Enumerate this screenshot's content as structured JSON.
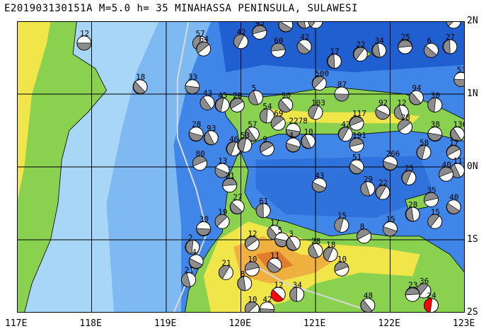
{
  "header": {
    "title": "E201903130151A M=5.0 h= 35 MINAHASSA PENINSULA, SULAWESI"
  },
  "map": {
    "lon_range": [
      117,
      123
    ],
    "lat_range": [
      -2,
      2
    ],
    "x_ticks": [
      "117E",
      "118E",
      "119E",
      "120E",
      "121E",
      "122E",
      "123E"
    ],
    "y_ticks": [
      "2N",
      "1N",
      "0N",
      "1S",
      "2S"
    ],
    "colors": {
      "deep_sea": "#1f5fd0",
      "mid_sea": "#3f86e8",
      "shallow_sea": "#7fb9f2",
      "shelf": "#a8d6f6",
      "lowland": "#8ad14f",
      "upland": "#f0e64a",
      "highland": "#f0b040",
      "peak": "#e07c2a",
      "grid": "#000000",
      "trench": "#d9d9d9",
      "event_highlight": "#ff0000"
    },
    "focal_mechanisms": [
      {
        "lon": 117.9,
        "lat": 1.7,
        "label": "12"
      },
      {
        "lon": 118.65,
        "lat": 1.1,
        "label": "18"
      },
      {
        "lon": 119.45,
        "lat": 1.7,
        "label": "57"
      },
      {
        "lon": 119.5,
        "lat": 1.62,
        "label": "64"
      },
      {
        "lon": 119.35,
        "lat": 1.1,
        "label": "33"
      },
      {
        "lon": 119.55,
        "lat": 0.88,
        "label": "43"
      },
      {
        "lon": 119.75,
        "lat": 0.85,
        "label": "45"
      },
      {
        "lon": 119.95,
        "lat": 0.85,
        "label": "20"
      },
      {
        "lon": 119.4,
        "lat": 0.45,
        "label": "28"
      },
      {
        "lon": 119.6,
        "lat": 0.4,
        "label": "93"
      },
      {
        "lon": 119.9,
        "lat": 0.25,
        "label": "46"
      },
      {
        "lon": 119.45,
        "lat": 0.05,
        "label": "80"
      },
      {
        "lon": 119.75,
        "lat": -0.05,
        "label": "13"
      },
      {
        "lon": 120.2,
        "lat": 0.95,
        "label": "5"
      },
      {
        "lon": 120.0,
        "lat": 1.72,
        "label": "42"
      },
      {
        "lon": 120.25,
        "lat": 1.85,
        "label": "43"
      },
      {
        "lon": 120.6,
        "lat": 1.95,
        "label": "33"
      },
      {
        "lon": 120.85,
        "lat": 2.0,
        "label": "59"
      },
      {
        "lon": 121.0,
        "lat": 2.0,
        "label": "35"
      },
      {
        "lon": 120.5,
        "lat": 1.6,
        "label": "60"
      },
      {
        "lon": 120.85,
        "lat": 1.65,
        "label": "42"
      },
      {
        "lon": 121.25,
        "lat": 1.45,
        "label": "17"
      },
      {
        "lon": 121.05,
        "lat": 1.15,
        "label": "500"
      },
      {
        "lon": 121.35,
        "lat": 1.0,
        "label": "87"
      },
      {
        "lon": 120.6,
        "lat": 0.85,
        "label": "90"
      },
      {
        "lon": 120.35,
        "lat": 0.7,
        "label": "54"
      },
      {
        "lon": 120.5,
        "lat": 0.6,
        "label": "69"
      },
      {
        "lon": 120.7,
        "lat": 0.5,
        "label": "2278"
      },
      {
        "lon": 120.15,
        "lat": 0.45,
        "label": "57"
      },
      {
        "lon": 120.05,
        "lat": 0.3,
        "label": "53"
      },
      {
        "lon": 120.35,
        "lat": 0.25,
        "label": "9"
      },
      {
        "lon": 120.7,
        "lat": 0.3,
        "label": "4"
      },
      {
        "lon": 120.9,
        "lat": 0.35,
        "label": "10"
      },
      {
        "lon": 121.0,
        "lat": 0.75,
        "label": "103"
      },
      {
        "lon": 121.55,
        "lat": 0.6,
        "label": "117"
      },
      {
        "lon": 121.9,
        "lat": 0.75,
        "label": "92"
      },
      {
        "lon": 122.15,
        "lat": 0.75,
        "label": "12"
      },
      {
        "lon": 121.4,
        "lat": 0.45,
        "label": "42"
      },
      {
        "lon": 121.55,
        "lat": 0.3,
        "label": "191"
      },
      {
        "lon": 121.55,
        "lat": 0.0,
        "label": "51"
      },
      {
        "lon": 121.85,
        "lat": 1.6,
        "label": "34"
      },
      {
        "lon": 121.6,
        "lat": 1.55,
        "label": "22"
      },
      {
        "lon": 122.2,
        "lat": 1.65,
        "label": "25"
      },
      {
        "lon": 122.55,
        "lat": 1.6,
        "label": "6"
      },
      {
        "lon": 122.8,
        "lat": 1.65,
        "label": "27"
      },
      {
        "lon": 122.85,
        "lat": 2.0,
        "label": "17"
      },
      {
        "lon": 122.95,
        "lat": 1.2,
        "label": "53"
      },
      {
        "lon": 122.35,
        "lat": 0.95,
        "label": "94"
      },
      {
        "lon": 122.6,
        "lat": 0.85,
        "label": "30"
      },
      {
        "lon": 122.2,
        "lat": 0.55,
        "label": "28"
      },
      {
        "lon": 122.6,
        "lat": 0.45,
        "label": "38"
      },
      {
        "lon": 122.9,
        "lat": 0.45,
        "label": "136"
      },
      {
        "lon": 122.45,
        "lat": 0.2,
        "label": "58"
      },
      {
        "lon": 122.85,
        "lat": 0.2,
        "label": "17"
      },
      {
        "lon": 122.0,
        "lat": 0.05,
        "label": "266"
      },
      {
        "lon": 122.9,
        "lat": -0.05,
        "label": "113"
      },
      {
        "lon": 122.25,
        "lat": -0.15,
        "label": "25"
      },
      {
        "lon": 122.75,
        "lat": -0.1,
        "label": "40"
      },
      {
        "lon": 121.05,
        "lat": -0.25,
        "label": "43"
      },
      {
        "lon": 121.7,
        "lat": -0.3,
        "label": "29"
      },
      {
        "lon": 121.9,
        "lat": -0.35,
        "label": "22"
      },
      {
        "lon": 122.55,
        "lat": -0.45,
        "label": "35"
      },
      {
        "lon": 122.85,
        "lat": -0.55,
        "label": "40"
      },
      {
        "lon": 122.3,
        "lat": -0.65,
        "label": "28"
      },
      {
        "lon": 122.6,
        "lat": -0.75,
        "label": "15"
      },
      {
        "lon": 119.85,
        "lat": -0.25,
        "label": "21"
      },
      {
        "lon": 119.95,
        "lat": -0.55,
        "label": "27"
      },
      {
        "lon": 120.3,
        "lat": -0.6,
        "label": "61"
      },
      {
        "lon": 119.75,
        "lat": -0.75,
        "label": "19"
      },
      {
        "lon": 119.5,
        "lat": -0.85,
        "label": "30"
      },
      {
        "lon": 120.45,
        "lat": -0.9,
        "label": "17"
      },
      {
        "lon": 119.35,
        "lat": -1.1,
        "label": "2"
      },
      {
        "lon": 120.15,
        "lat": -1.05,
        "label": "12"
      },
      {
        "lon": 120.55,
        "lat": -1.0,
        "label": "5"
      },
      {
        "lon": 120.7,
        "lat": -1.05,
        "label": "3"
      },
      {
        "lon": 121.35,
        "lat": -0.8,
        "label": "15"
      },
      {
        "lon": 121.65,
        "lat": -0.95,
        "label": "8"
      },
      {
        "lon": 122.0,
        "lat": -0.85,
        "label": "15"
      },
      {
        "lon": 121.0,
        "lat": -1.15,
        "label": "28"
      },
      {
        "lon": 121.2,
        "lat": -1.2,
        "label": "18"
      },
      {
        "lon": 121.35,
        "lat": -1.4,
        "label": "10"
      },
      {
        "lon": 119.4,
        "lat": -1.3,
        "label": "4"
      },
      {
        "lon": 119.3,
        "lat": -1.55,
        "label": "21"
      },
      {
        "lon": 119.8,
        "lat": -1.45,
        "label": "21"
      },
      {
        "lon": 120.15,
        "lat": -1.4,
        "label": "10"
      },
      {
        "lon": 120.45,
        "lat": -1.35,
        "label": "11"
      },
      {
        "lon": 120.05,
        "lat": -1.6,
        "label": "8"
      },
      {
        "lon": 122.45,
        "lat": -1.7,
        "label": "36"
      },
      {
        "lon": 122.3,
        "lat": -1.75,
        "label": "23"
      },
      {
        "lon": 120.5,
        "lat": -1.75,
        "label": "12",
        "highlight": true
      },
      {
        "lon": 120.75,
        "lat": -1.75,
        "label": "34"
      },
      {
        "lon": 120.15,
        "lat": -1.95,
        "label": "10"
      },
      {
        "lon": 120.35,
        "lat": -1.95,
        "label": "42"
      },
      {
        "lon": 121.7,
        "lat": -1.9,
        "label": "48"
      },
      {
        "lon": 122.55,
        "lat": -1.9,
        "label": "24",
        "highlight": true
      }
    ]
  }
}
